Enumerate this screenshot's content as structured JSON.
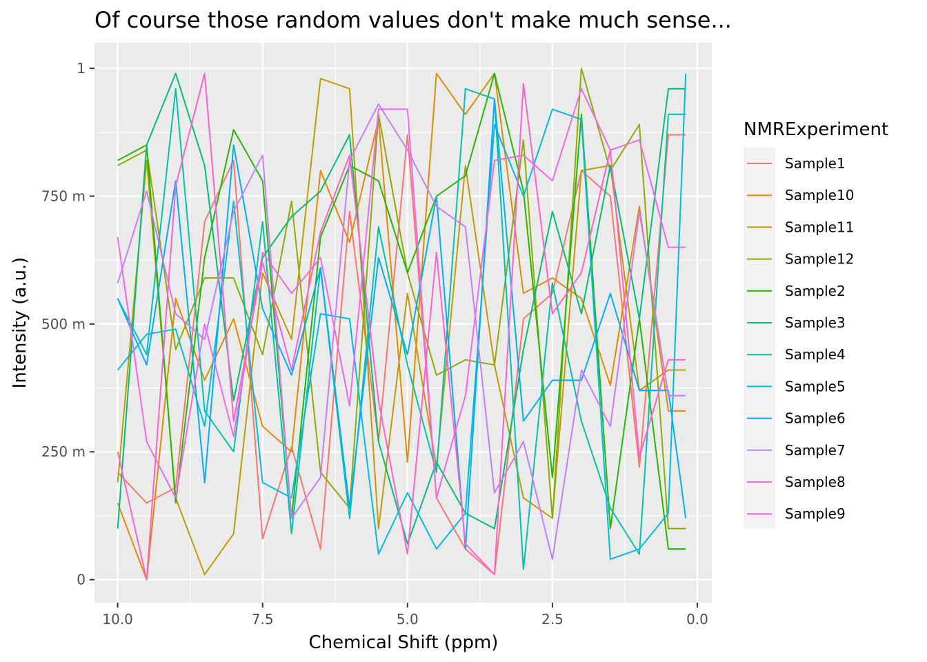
{
  "chart_data": {
    "type": "line",
    "title": "Of course those random values don't make much sense...",
    "xlabel": "Chemical Shift (ppm)",
    "ylabel": "Intensity (a.u.)",
    "xlim": [
      10.4,
      -0.25
    ],
    "ylim": [
      -0.045,
      1.05
    ],
    "x_reversed": true,
    "grid": true,
    "x_ticks": [
      {
        "value": 10,
        "label": "10.0"
      },
      {
        "value": 7.5,
        "label": "7.5"
      },
      {
        "value": 5,
        "label": "5.0"
      },
      {
        "value": 2.5,
        "label": "2.5"
      },
      {
        "value": 0,
        "label": "0.0"
      }
    ],
    "y_ticks": [
      {
        "value": 0,
        "label": "0"
      },
      {
        "value": 0.25,
        "label": "250 m"
      },
      {
        "value": 0.5,
        "label": "500 m"
      },
      {
        "value": 0.75,
        "label": "750 m"
      },
      {
        "value": 1,
        "label": "1"
      }
    ],
    "legend": {
      "title": "NMRExperiment",
      "position": "right"
    },
    "x": [
      10,
      9.5,
      9,
      8.5,
      8,
      7.5,
      7,
      6.5,
      6,
      5.5,
      5,
      4.5,
      4,
      3.5,
      3,
      2.5,
      2,
      1.5,
      1,
      0.5,
      0.2
    ],
    "series": [
      {
        "name": "Sample1",
        "color": "#F8766D",
        "values": [
          0.21,
          0.15,
          0.18,
          0.7,
          0.82,
          0.08,
          0.26,
          0.06,
          0.72,
          0.27,
          0.87,
          0.16,
          0.06,
          0.01,
          0.51,
          0.56,
          0.8,
          0.75,
          0.22,
          0.87,
          0.87
        ]
      },
      {
        "name": "Sample10",
        "color": "#E18A00",
        "values": [
          0.15,
          0.0,
          0.55,
          0.39,
          0.51,
          0.3,
          0.25,
          0.8,
          0.66,
          0.9,
          0.23,
          0.99,
          0.91,
          0.99,
          0.56,
          0.59,
          0.55,
          0.38,
          0.73,
          0.33,
          0.33
        ]
      },
      {
        "name": "Sample11",
        "color": "#BE9C00",
        "values": [
          0.19,
          0.82,
          0.16,
          0.01,
          0.09,
          0.6,
          0.47,
          0.98,
          0.96,
          0.1,
          0.56,
          0.22,
          0.81,
          0.42,
          0.16,
          0.12,
          0.8,
          0.81,
          0.37,
          0.41,
          0.41
        ]
      },
      {
        "name": "Sample12",
        "color": "#8CAB00",
        "values": [
          0.81,
          0.84,
          0.45,
          0.59,
          0.59,
          0.44,
          0.74,
          0.21,
          0.14,
          0.91,
          0.6,
          0.4,
          0.43,
          0.42,
          0.86,
          0.12,
          1.0,
          0.8,
          0.89,
          0.1,
          0.1
        ]
      },
      {
        "name": "Sample2",
        "color": "#24B700",
        "values": [
          0.82,
          0.85,
          0.15,
          0.63,
          0.88,
          0.78,
          0.12,
          0.67,
          0.81,
          0.78,
          0.6,
          0.75,
          0.79,
          0.99,
          0.76,
          0.2,
          0.91,
          0.1,
          0.51,
          0.06,
          0.06
        ]
      },
      {
        "name": "Sample3",
        "color": "#00BE70",
        "values": [
          0.1,
          0.85,
          0.99,
          0.81,
          0.35,
          0.63,
          0.71,
          0.76,
          0.87,
          0.27,
          0.07,
          0.23,
          0.13,
          0.1,
          0.45,
          0.72,
          0.52,
          0.81,
          0.51,
          0.96,
          0.96
        ]
      },
      {
        "name": "Sample4",
        "color": "#00C1AB",
        "values": [
          0.55,
          0.44,
          0.96,
          0.33,
          0.25,
          0.7,
          0.09,
          0.61,
          0.12,
          0.69,
          0.42,
          0.21,
          0.96,
          0.94,
          0.02,
          0.58,
          0.31,
          0.14,
          0.05,
          0.91,
          0.91
        ]
      },
      {
        "name": "Sample5",
        "color": "#00BBDA",
        "values": [
          0.41,
          0.48,
          0.49,
          0.3,
          0.74,
          0.19,
          0.16,
          0.52,
          0.51,
          0.05,
          0.17,
          0.06,
          0.13,
          0.89,
          0.75,
          0.92,
          0.9,
          0.04,
          0.06,
          0.13,
          0.99
        ]
      },
      {
        "name": "Sample6",
        "color": "#00ACFC",
        "values": [
          0.55,
          0.42,
          0.78,
          0.19,
          0.85,
          0.53,
          0.4,
          0.61,
          0.14,
          0.63,
          0.44,
          0.75,
          0.06,
          0.94,
          0.31,
          0.39,
          0.39,
          0.56,
          0.37,
          0.37,
          0.12
        ]
      },
      {
        "name": "Sample7",
        "color": "#C77CFF",
        "values": [
          0.58,
          0.76,
          0.52,
          0.47,
          0.72,
          0.83,
          0.12,
          0.2,
          0.82,
          0.93,
          0.84,
          0.73,
          0.69,
          0.17,
          0.27,
          0.04,
          0.41,
          0.3,
          0.72,
          0.36,
          0.36
        ]
      },
      {
        "name": "Sample8",
        "color": "#ED68ED",
        "values": [
          0.67,
          0.27,
          0.16,
          0.5,
          0.28,
          0.64,
          0.56,
          0.63,
          0.34,
          0.92,
          0.92,
          0.16,
          0.36,
          0.82,
          0.83,
          0.78,
          0.96,
          0.84,
          0.86,
          0.65,
          0.65
        ]
      },
      {
        "name": "Sample9",
        "color": "#FF61CC",
        "values": [
          0.25,
          0.0,
          0.77,
          0.99,
          0.31,
          0.62,
          0.41,
          0.68,
          0.83,
          0.35,
          0.05,
          0.64,
          0.07,
          0.01,
          0.97,
          0.52,
          0.6,
          0.84,
          0.24,
          0.43,
          0.43
        ]
      }
    ]
  }
}
